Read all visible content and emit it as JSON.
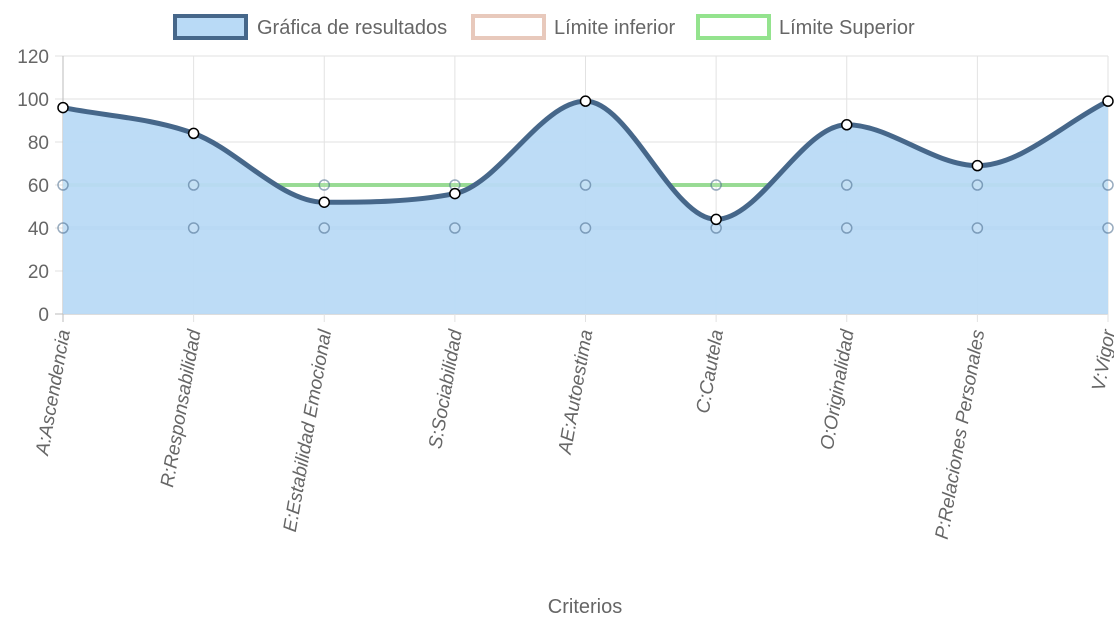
{
  "chart_data": {
    "type": "line",
    "categories": [
      "A:Ascendencia",
      "R:Responsabilidad",
      "E:Estabilidad Emocional",
      "S:Sociabilidad",
      "AE:Autoestima",
      "C:Cautela",
      "O:Originalidad",
      "P:Relaciones Personales",
      "V:Vigor"
    ],
    "series": [
      {
        "name": "Gráfica de resultados",
        "values": [
          96,
          84,
          52,
          56,
          99,
          44,
          88,
          69,
          99
        ],
        "fill": true,
        "color": "#46678a",
        "fill_color": "#b9daf6"
      },
      {
        "name": "Límite inferior",
        "values": [
          40,
          40,
          40,
          40,
          40,
          40,
          40,
          40,
          40
        ],
        "fill": false,
        "color": "#a9b7d2",
        "legend_color": "#e8c9bc"
      },
      {
        "name": "Límite Superior",
        "values": [
          60,
          60,
          60,
          60,
          60,
          60,
          60,
          60,
          60
        ],
        "fill": false,
        "color": "#8fd88a",
        "legend_color": "#94e38e"
      }
    ],
    "y_ticks": [
      "0",
      "20",
      "40",
      "60",
      "80",
      "100",
      "120"
    ],
    "ylim": [
      0,
      120
    ],
    "xlabel": "Criterios",
    "ylabel": "",
    "grid": true,
    "legend_position": "top"
  }
}
